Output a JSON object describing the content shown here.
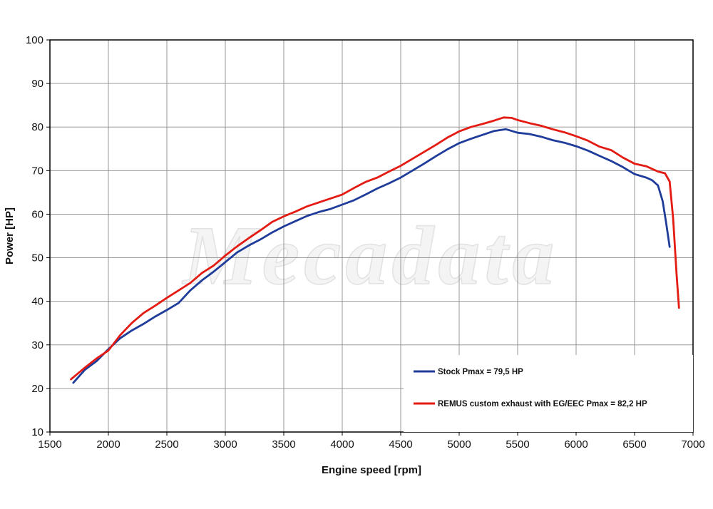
{
  "chart_data": {
    "type": "line",
    "xlabel": "Engine speed [rpm]",
    "ylabel": "Power [HP]",
    "xlim": [
      1500,
      7000
    ],
    "ylim": [
      10,
      100
    ],
    "xticks": [
      1500,
      2000,
      2500,
      3000,
      3500,
      4000,
      4500,
      5000,
      5500,
      6000,
      6500,
      7000
    ],
    "yticks": [
      10,
      20,
      30,
      40,
      50,
      60,
      70,
      80,
      90,
      100
    ],
    "grid": true,
    "legend_position": "bottom-right",
    "watermark": "Mecadata",
    "series": [
      {
        "name": "Stock Pmax = 79,5 HP",
        "color": "#1f3c9a",
        "points": [
          [
            1700,
            21.3
          ],
          [
            1800,
            24.3
          ],
          [
            1900,
            26.3
          ],
          [
            2000,
            29.0
          ],
          [
            2100,
            31.5
          ],
          [
            2200,
            33.3
          ],
          [
            2300,
            34.8
          ],
          [
            2400,
            36.5
          ],
          [
            2500,
            38.0
          ],
          [
            2600,
            39.6
          ],
          [
            2700,
            42.5
          ],
          [
            2800,
            44.8
          ],
          [
            2900,
            46.8
          ],
          [
            3000,
            49.0
          ],
          [
            3100,
            51.2
          ],
          [
            3200,
            52.8
          ],
          [
            3300,
            54.2
          ],
          [
            3400,
            55.8
          ],
          [
            3500,
            57.2
          ],
          [
            3600,
            58.4
          ],
          [
            3700,
            59.6
          ],
          [
            3800,
            60.5
          ],
          [
            3900,
            61.2
          ],
          [
            4000,
            62.2
          ],
          [
            4100,
            63.2
          ],
          [
            4200,
            64.5
          ],
          [
            4300,
            65.9
          ],
          [
            4400,
            67.1
          ],
          [
            4500,
            68.4
          ],
          [
            4600,
            70.0
          ],
          [
            4700,
            71.6
          ],
          [
            4800,
            73.3
          ],
          [
            4900,
            74.9
          ],
          [
            5000,
            76.3
          ],
          [
            5100,
            77.3
          ],
          [
            5200,
            78.2
          ],
          [
            5300,
            79.1
          ],
          [
            5400,
            79.5
          ],
          [
            5450,
            79.1
          ],
          [
            5500,
            78.7
          ],
          [
            5600,
            78.4
          ],
          [
            5700,
            77.8
          ],
          [
            5800,
            77.0
          ],
          [
            5900,
            76.4
          ],
          [
            6000,
            75.6
          ],
          [
            6100,
            74.6
          ],
          [
            6200,
            73.4
          ],
          [
            6300,
            72.2
          ],
          [
            6400,
            70.8
          ],
          [
            6500,
            69.2
          ],
          [
            6600,
            68.4
          ],
          [
            6650,
            67.8
          ],
          [
            6700,
            66.6
          ],
          [
            6740,
            63.0
          ],
          [
            6770,
            58.0
          ],
          [
            6800,
            52.5
          ]
        ]
      },
      {
        "name": "REMUS custom exhaust with EG/EEC Pmax =  82,2 HP",
        "color": "#e31b13",
        "points": [
          [
            1680,
            22.1
          ],
          [
            1800,
            24.8
          ],
          [
            1900,
            26.9
          ],
          [
            2000,
            28.7
          ],
          [
            2100,
            32.2
          ],
          [
            2200,
            35.0
          ],
          [
            2300,
            37.3
          ],
          [
            2400,
            39.0
          ],
          [
            2500,
            40.8
          ],
          [
            2600,
            42.5
          ],
          [
            2700,
            44.2
          ],
          [
            2800,
            46.5
          ],
          [
            2900,
            48.2
          ],
          [
            3000,
            50.5
          ],
          [
            3100,
            52.6
          ],
          [
            3200,
            54.5
          ],
          [
            3300,
            56.3
          ],
          [
            3400,
            58.2
          ],
          [
            3500,
            59.5
          ],
          [
            3600,
            60.6
          ],
          [
            3700,
            61.8
          ],
          [
            3800,
            62.7
          ],
          [
            3900,
            63.6
          ],
          [
            4000,
            64.5
          ],
          [
            4100,
            66.0
          ],
          [
            4200,
            67.4
          ],
          [
            4300,
            68.4
          ],
          [
            4400,
            69.8
          ],
          [
            4500,
            71.1
          ],
          [
            4600,
            72.7
          ],
          [
            4700,
            74.3
          ],
          [
            4800,
            75.9
          ],
          [
            4900,
            77.6
          ],
          [
            5000,
            79.0
          ],
          [
            5100,
            80.0
          ],
          [
            5200,
            80.7
          ],
          [
            5300,
            81.5
          ],
          [
            5380,
            82.2
          ],
          [
            5450,
            82.1
          ],
          [
            5500,
            81.6
          ],
          [
            5600,
            80.9
          ],
          [
            5700,
            80.3
          ],
          [
            5800,
            79.5
          ],
          [
            5900,
            78.8
          ],
          [
            6000,
            77.9
          ],
          [
            6100,
            76.9
          ],
          [
            6200,
            75.5
          ],
          [
            6300,
            74.7
          ],
          [
            6400,
            73.0
          ],
          [
            6500,
            71.6
          ],
          [
            6600,
            71.0
          ],
          [
            6700,
            69.8
          ],
          [
            6760,
            69.4
          ],
          [
            6800,
            67.5
          ],
          [
            6830,
            59.0
          ],
          [
            6860,
            46.0
          ],
          [
            6880,
            38.5
          ]
        ]
      }
    ]
  }
}
